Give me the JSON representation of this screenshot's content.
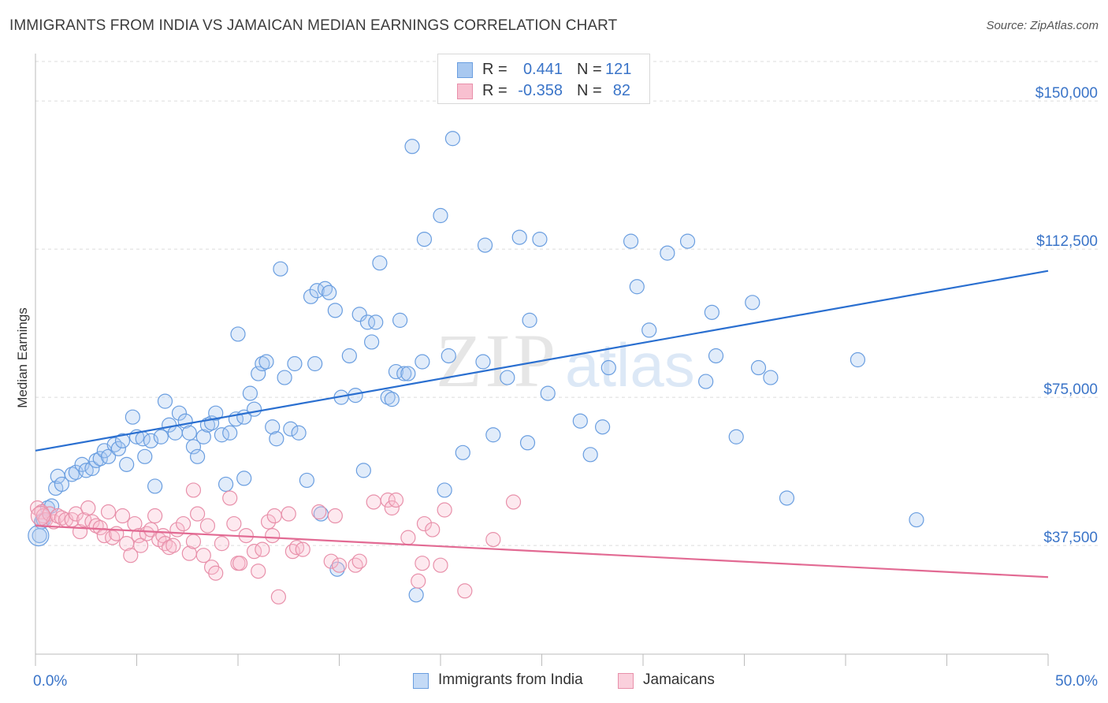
{
  "header": {
    "title": "IMMIGRANTS FROM INDIA VS JAMAICAN MEDIAN EARNINGS CORRELATION CHART",
    "source": "Source: ZipAtlas.com"
  },
  "stats": [
    {
      "r_label": "R =",
      "r_value": "0.441",
      "n_label": "N =",
      "n_value": "121",
      "color": "#a8c8f0",
      "border": "#6a9ee0"
    },
    {
      "r_label": "R =",
      "r_value": "-0.358",
      "n_label": "N =",
      "n_value": "82",
      "color": "#f8c0d0",
      "border": "#e890aa"
    }
  ],
  "legend": {
    "india": "Immigrants from India",
    "jamaica": "Jamaicans"
  },
  "chart_data": {
    "type": "scatter",
    "title": "IMMIGRANTS FROM INDIA VS JAMAICAN MEDIAN EARNINGS CORRELATION CHART",
    "xlabel": "",
    "ylabel": "Median Earnings",
    "xlim": [
      0,
      50
    ],
    "ylim": [
      10000,
      160000
    ],
    "x_tick_labels": [
      "0.0%",
      "50.0%"
    ],
    "y_ticks": [
      {
        "value": 37500,
        "label": "$37,500"
      },
      {
        "value": 75000,
        "label": "$75,000"
      },
      {
        "value": 112500,
        "label": "$112,500"
      },
      {
        "value": 150000,
        "label": "$150,000"
      }
    ],
    "grid": true,
    "legend_position": "bottom",
    "colors": {
      "india_point": "#6a9ee0",
      "india_fill": "rgba(168,200,240,0.35)",
      "india_line": "#2a6fd0",
      "jamaica_point": "#e890aa",
      "jamaica_fill": "rgba(248,192,208,0.35)",
      "jamaica_line": "#e26a93",
      "axis_text": "#3a74c8"
    },
    "series": [
      {
        "name": "Immigrants from India",
        "trend": {
          "x": [
            0,
            50
          ],
          "y": [
            61500,
            107000
          ]
        },
        "points": [
          [
            0.2,
            40000
          ],
          [
            0.3,
            43500
          ],
          [
            0.4,
            44000
          ],
          [
            0.6,
            47000
          ],
          [
            0.8,
            47500
          ],
          [
            1.0,
            52000
          ],
          [
            1.1,
            55000
          ],
          [
            1.3,
            53000
          ],
          [
            1.8,
            55500
          ],
          [
            2.0,
            56000
          ],
          [
            2.3,
            58000
          ],
          [
            2.5,
            56500
          ],
          [
            2.8,
            57000
          ],
          [
            3.0,
            59000
          ],
          [
            3.2,
            59500
          ],
          [
            3.4,
            61500
          ],
          [
            3.6,
            60000
          ],
          [
            3.9,
            63000
          ],
          [
            4.1,
            62000
          ],
          [
            4.3,
            64000
          ],
          [
            4.5,
            58000
          ],
          [
            4.8,
            70000
          ],
          [
            5.0,
            65000
          ],
          [
            5.3,
            64500
          ],
          [
            5.4,
            60000
          ],
          [
            5.7,
            64000
          ],
          [
            5.9,
            52500
          ],
          [
            6.2,
            65000
          ],
          [
            6.4,
            74000
          ],
          [
            6.6,
            68000
          ],
          [
            6.9,
            66000
          ],
          [
            7.1,
            71000
          ],
          [
            7.4,
            69000
          ],
          [
            7.6,
            66000
          ],
          [
            7.8,
            62500
          ],
          [
            8.0,
            60000
          ],
          [
            8.3,
            65000
          ],
          [
            8.5,
            68000
          ],
          [
            8.7,
            68500
          ],
          [
            8.9,
            71000
          ],
          [
            9.2,
            65500
          ],
          [
            9.4,
            53000
          ],
          [
            9.6,
            66000
          ],
          [
            9.9,
            69500
          ],
          [
            10.0,
            91000
          ],
          [
            10.3,
            70000
          ],
          [
            10.3,
            54500
          ],
          [
            10.6,
            76000
          ],
          [
            10.8,
            72000
          ],
          [
            11.0,
            81000
          ],
          [
            11.2,
            83500
          ],
          [
            11.4,
            84000
          ],
          [
            11.7,
            67500
          ],
          [
            11.9,
            64500
          ],
          [
            12.1,
            107500
          ],
          [
            12.3,
            80000
          ],
          [
            12.6,
            67000
          ],
          [
            12.8,
            83500
          ],
          [
            13.0,
            66000
          ],
          [
            13.4,
            54000
          ],
          [
            13.6,
            100500
          ],
          [
            13.8,
            83500
          ],
          [
            13.9,
            102000
          ],
          [
            14.1,
            45500
          ],
          [
            14.3,
            102500
          ],
          [
            14.5,
            101500
          ],
          [
            14.8,
            97000
          ],
          [
            14.9,
            31500
          ],
          [
            15.1,
            75000
          ],
          [
            15.5,
            85500
          ],
          [
            15.8,
            75500
          ],
          [
            16.0,
            96000
          ],
          [
            16.2,
            56500
          ],
          [
            16.4,
            94000
          ],
          [
            16.6,
            89000
          ],
          [
            16.8,
            94000
          ],
          [
            17.0,
            109000
          ],
          [
            17.4,
            75000
          ],
          [
            17.6,
            74500
          ],
          [
            17.8,
            81500
          ],
          [
            18.0,
            94500
          ],
          [
            18.2,
            81000
          ],
          [
            18.4,
            81000
          ],
          [
            18.6,
            138500
          ],
          [
            18.8,
            25000
          ],
          [
            19.1,
            84000
          ],
          [
            19.2,
            115000
          ],
          [
            20.0,
            121000
          ],
          [
            20.2,
            51500
          ],
          [
            20.4,
            85500
          ],
          [
            20.6,
            140500
          ],
          [
            21.1,
            61000
          ],
          [
            22.1,
            84000
          ],
          [
            22.2,
            113500
          ],
          [
            22.6,
            65500
          ],
          [
            23.3,
            80000
          ],
          [
            23.9,
            115500
          ],
          [
            24.3,
            63500
          ],
          [
            24.4,
            94500
          ],
          [
            24.9,
            115000
          ],
          [
            25.3,
            76000
          ],
          [
            26.9,
            69000
          ],
          [
            27.4,
            60500
          ],
          [
            28.0,
            67500
          ],
          [
            28.3,
            82500
          ],
          [
            29.4,
            114500
          ],
          [
            29.7,
            103000
          ],
          [
            30.3,
            92000
          ],
          [
            31.2,
            111500
          ],
          [
            32.2,
            114500
          ],
          [
            33.1,
            79000
          ],
          [
            33.4,
            96500
          ],
          [
            33.6,
            85500
          ],
          [
            34.6,
            65000
          ],
          [
            35.4,
            99000
          ],
          [
            35.7,
            82500
          ],
          [
            36.3,
            80000
          ],
          [
            37.1,
            49500
          ],
          [
            40.6,
            84500
          ],
          [
            43.5,
            44000
          ]
        ]
      },
      {
        "name": "Jamaicans",
        "trend": {
          "x": [
            0,
            50
          ],
          "y": [
            42500,
            29500
          ]
        },
        "points": [
          [
            0.1,
            47000
          ],
          [
            0.3,
            46000
          ],
          [
            0.4,
            45000
          ],
          [
            0.5,
            44000
          ],
          [
            0.7,
            45500
          ],
          [
            0.9,
            43500
          ],
          [
            1.1,
            45000
          ],
          [
            1.3,
            44500
          ],
          [
            1.5,
            44000
          ],
          [
            1.8,
            44000
          ],
          [
            2.0,
            45500
          ],
          [
            2.2,
            41000
          ],
          [
            2.4,
            44000
          ],
          [
            2.6,
            47000
          ],
          [
            2.8,
            43500
          ],
          [
            3.0,
            42500
          ],
          [
            3.2,
            42000
          ],
          [
            3.4,
            40000
          ],
          [
            3.6,
            46000
          ],
          [
            3.8,
            39500
          ],
          [
            4.0,
            40500
          ],
          [
            4.3,
            45000
          ],
          [
            4.5,
            38000
          ],
          [
            4.7,
            35000
          ],
          [
            4.9,
            43000
          ],
          [
            5.1,
            40000
          ],
          [
            5.2,
            37500
          ],
          [
            5.5,
            40500
          ],
          [
            5.7,
            41500
          ],
          [
            5.9,
            45000
          ],
          [
            6.1,
            39000
          ],
          [
            6.3,
            40000
          ],
          [
            6.4,
            38000
          ],
          [
            6.6,
            37000
          ],
          [
            6.8,
            37500
          ],
          [
            7.0,
            41500
          ],
          [
            7.3,
            43000
          ],
          [
            7.6,
            35500
          ],
          [
            7.8,
            38500
          ],
          [
            7.8,
            51500
          ],
          [
            8.0,
            45500
          ],
          [
            8.3,
            35000
          ],
          [
            8.5,
            42500
          ],
          [
            8.7,
            32000
          ],
          [
            8.9,
            30500
          ],
          [
            9.2,
            38000
          ],
          [
            9.6,
            49500
          ],
          [
            9.8,
            43000
          ],
          [
            10.0,
            33000
          ],
          [
            10.1,
            33000
          ],
          [
            10.4,
            40000
          ],
          [
            10.8,
            36000
          ],
          [
            11.0,
            31000
          ],
          [
            11.2,
            36500
          ],
          [
            11.5,
            43500
          ],
          [
            11.7,
            40000
          ],
          [
            11.8,
            45000
          ],
          [
            12.0,
            24500
          ],
          [
            12.5,
            45500
          ],
          [
            12.7,
            36000
          ],
          [
            12.9,
            37000
          ],
          [
            13.2,
            36500
          ],
          [
            14.0,
            46000
          ],
          [
            14.6,
            33500
          ],
          [
            14.8,
            45000
          ],
          [
            15.0,
            32500
          ],
          [
            15.8,
            32500
          ],
          [
            16.0,
            33500
          ],
          [
            16.7,
            48500
          ],
          [
            17.4,
            49000
          ],
          [
            17.6,
            47000
          ],
          [
            17.8,
            49000
          ],
          [
            18.4,
            39500
          ],
          [
            18.9,
            28500
          ],
          [
            19.1,
            33000
          ],
          [
            19.2,
            43000
          ],
          [
            19.6,
            41500
          ],
          [
            20.0,
            32500
          ],
          [
            20.2,
            46500
          ],
          [
            21.2,
            26000
          ],
          [
            22.6,
            39000
          ],
          [
            23.6,
            48500
          ]
        ]
      }
    ]
  }
}
